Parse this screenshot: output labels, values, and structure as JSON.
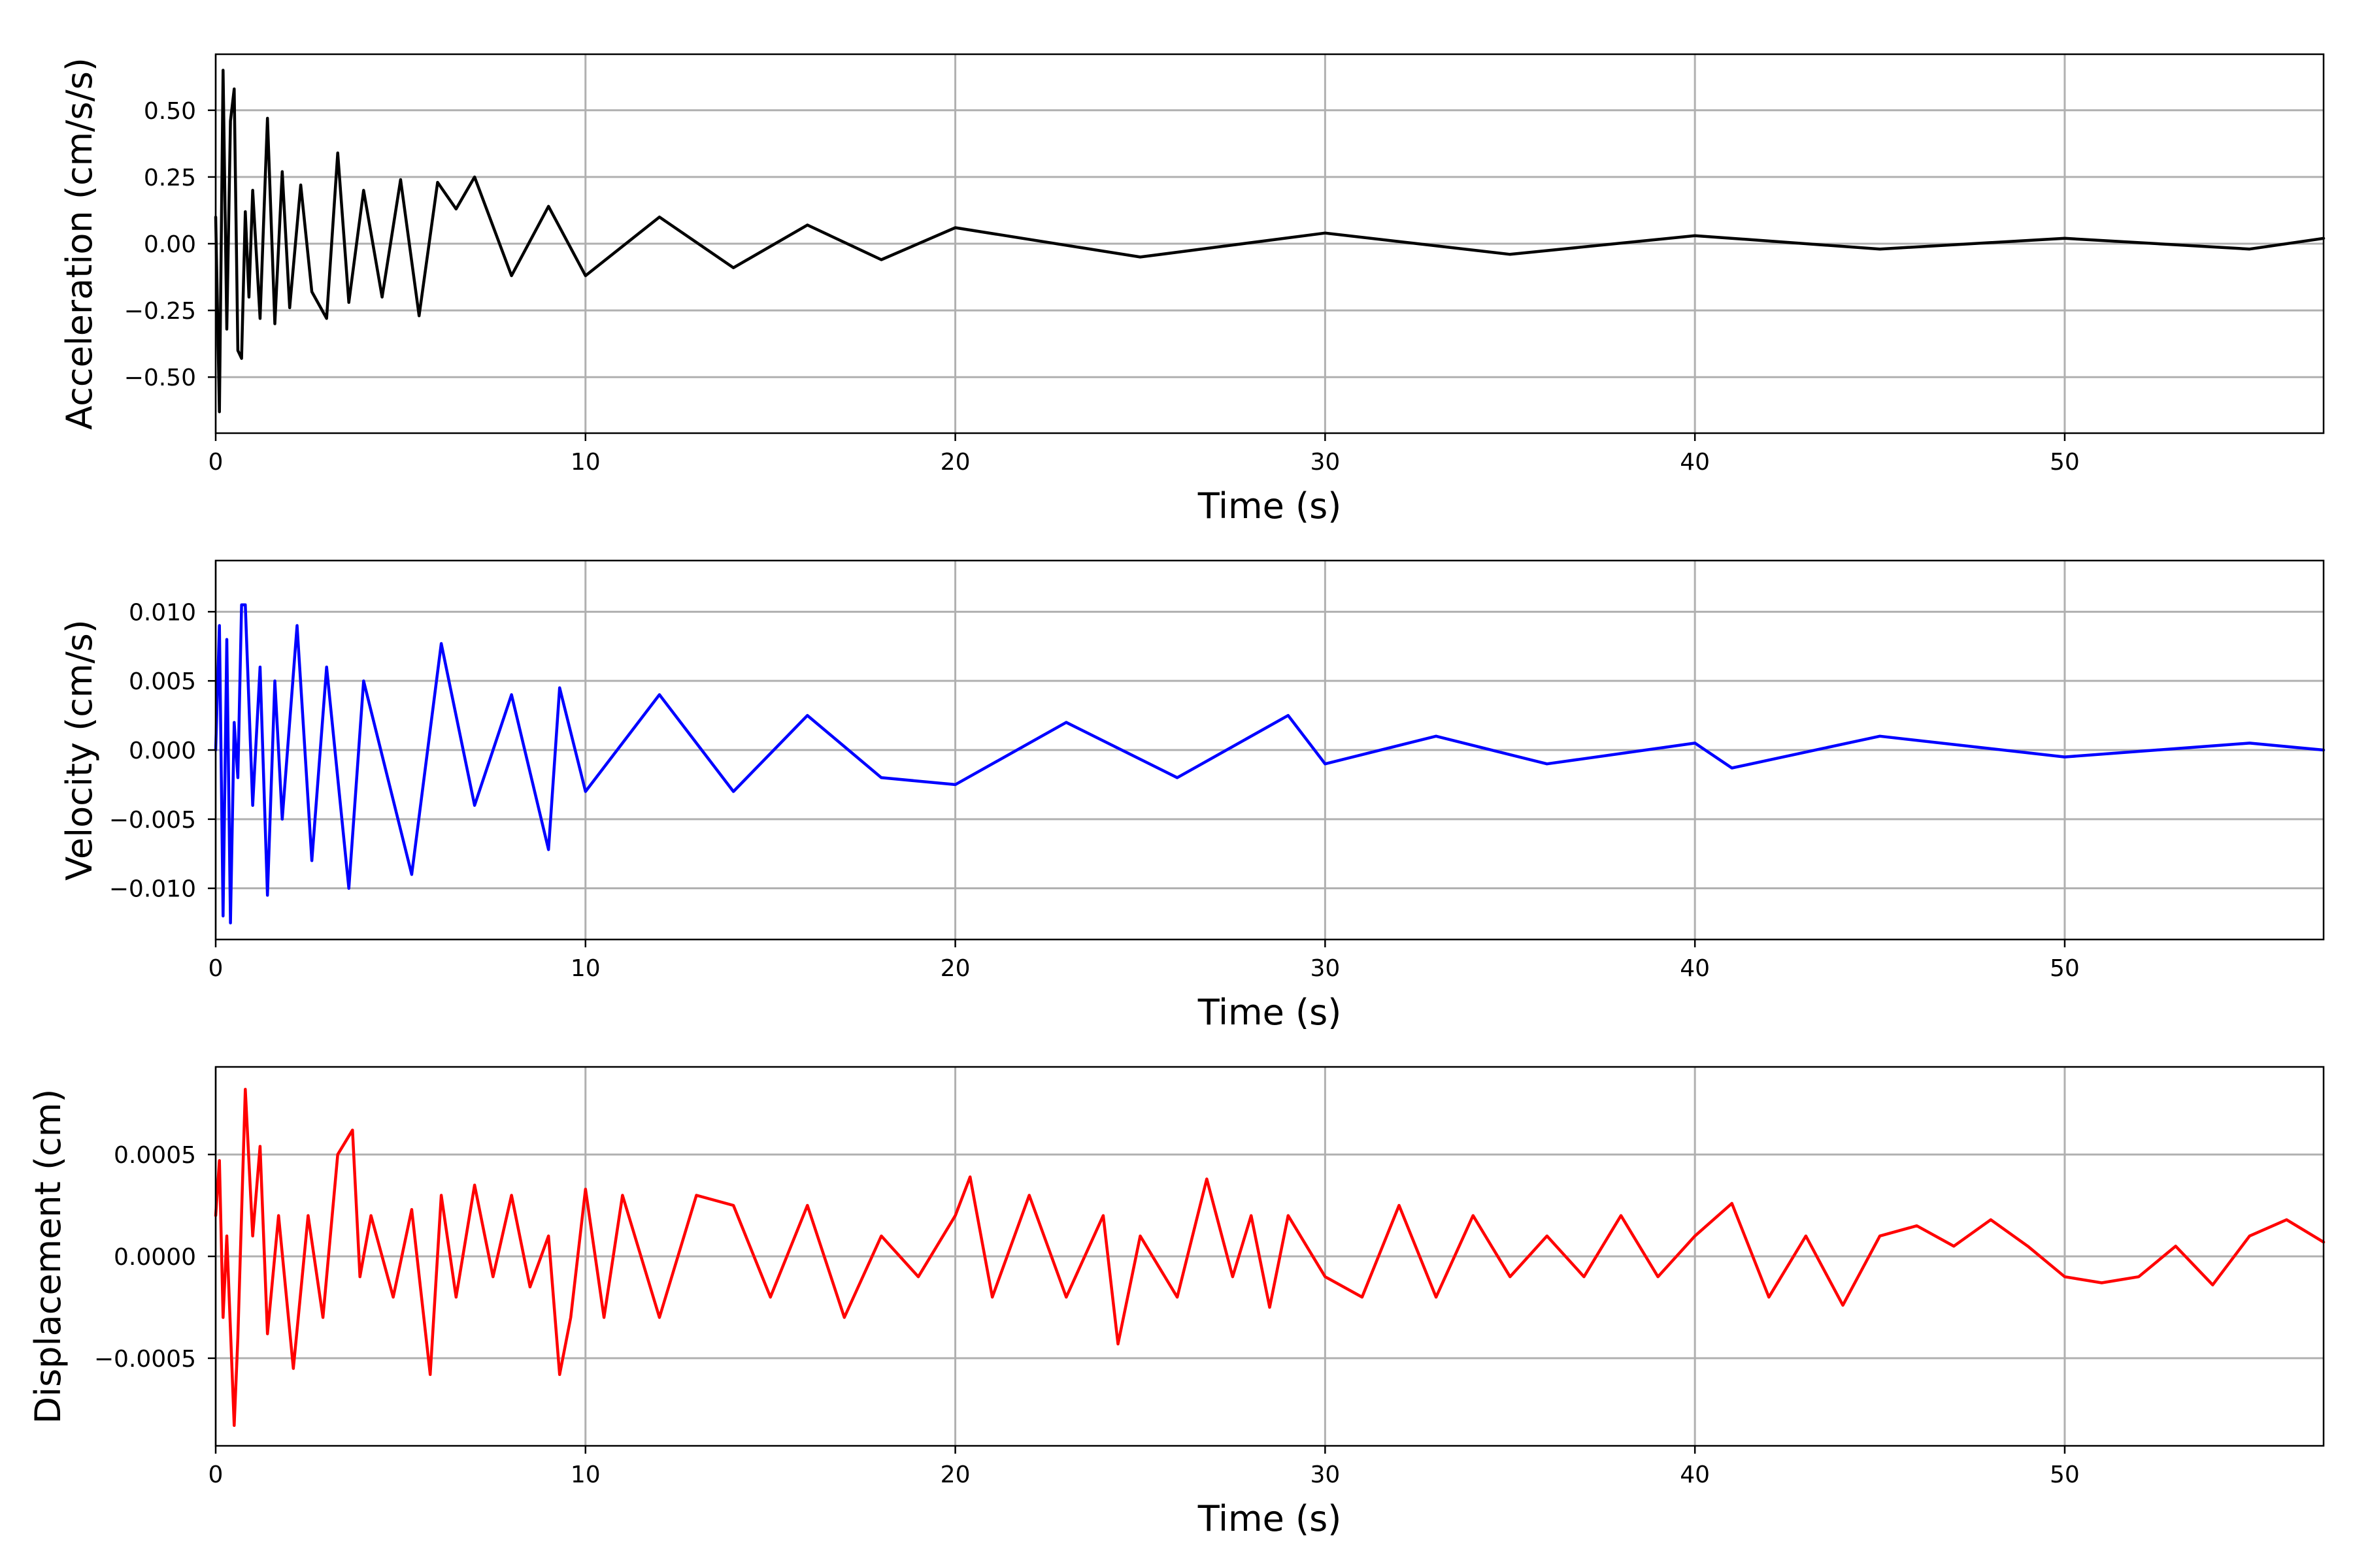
{
  "chart_data": [
    {
      "type": "line",
      "xlabel": "Time (s)",
      "ylabel": "Acceleration (cm/s/s)",
      "xlim": [
        0,
        57
      ],
      "ylim": [
        -0.71,
        0.71
      ],
      "x_ticks": [
        0,
        10,
        20,
        30,
        40,
        50
      ],
      "x_tick_labels": [
        "0",
        "10",
        "20",
        "30",
        "40",
        "50"
      ],
      "y_ticks": [
        -0.5,
        -0.25,
        0,
        0.25,
        0.5
      ],
      "y_tick_labels": [
        "−0.50",
        "−0.25",
        "0.00",
        "0.25",
        "0.50"
      ],
      "grid": true,
      "legend": "none",
      "series": [
        {
          "color": "#000000",
          "x": [
            0,
            0.1,
            0.2,
            0.3,
            0.4,
            0.5,
            0.6,
            0.7,
            0.8,
            0.9,
            1,
            1.2,
            1.4,
            1.6,
            1.8,
            2,
            2.3,
            2.6,
            3,
            3.3,
            3.6,
            4,
            4.5,
            5,
            5.5,
            6,
            6.5,
            7,
            8,
            9,
            10,
            12,
            14,
            16,
            18,
            20,
            25,
            30,
            35,
            40,
            45,
            50,
            55,
            57
          ],
          "y": [
            0.1,
            -0.63,
            0.65,
            -0.32,
            0.46,
            0.58,
            -0.4,
            -0.43,
            0.12,
            -0.2,
            0.2,
            -0.28,
            0.47,
            -0.3,
            0.27,
            -0.24,
            0.22,
            -0.18,
            -0.28,
            0.34,
            -0.22,
            0.2,
            -0.2,
            0.24,
            -0.27,
            0.23,
            0.13,
            0.25,
            -0.12,
            0.14,
            -0.12,
            0.1,
            -0.09,
            0.07,
            -0.06,
            0.06,
            -0.05,
            0.04,
            -0.04,
            0.03,
            -0.02,
            0.02,
            -0.02,
            0.02
          ]
        }
      ]
    },
    {
      "type": "line",
      "xlabel": "Time (s)",
      "ylabel": "Velocity (cm/s)",
      "xlim": [
        0,
        57
      ],
      "ylim": [
        -0.0137,
        0.0137
      ],
      "x_ticks": [
        0,
        10,
        20,
        30,
        40,
        50
      ],
      "x_tick_labels": [
        "0",
        "10",
        "20",
        "30",
        "40",
        "50"
      ],
      "y_ticks": [
        -0.01,
        -0.005,
        0,
        0.005,
        0.01
      ],
      "y_tick_labels": [
        "−0.010",
        "−0.005",
        "0.000",
        "0.005",
        "0.010"
      ],
      "grid": true,
      "legend": "none",
      "series": [
        {
          "color": "#0000ff",
          "x": [
            0,
            0.1,
            0.2,
            0.3,
            0.4,
            0.5,
            0.6,
            0.7,
            0.8,
            1,
            1.2,
            1.4,
            1.6,
            1.8,
            2.2,
            2.6,
            3,
            3.6,
            4,
            5.3,
            6.1,
            7,
            8,
            9,
            9.3,
            10,
            12,
            14,
            16,
            18,
            20,
            23,
            26,
            29,
            30,
            33,
            36,
            40,
            41,
            45,
            50,
            55,
            57
          ],
          "y": [
            0,
            0.009,
            -0.012,
            0.008,
            -0.0125,
            0.002,
            -0.002,
            0.0105,
            0.0105,
            -0.004,
            0.006,
            -0.0105,
            0.005,
            -0.005,
            0.009,
            -0.008,
            0.006,
            -0.01,
            0.005,
            -0.009,
            0.0077,
            -0.004,
            0.004,
            -0.0072,
            0.0045,
            -0.003,
            0.004,
            -0.003,
            0.0025,
            -0.002,
            -0.0025,
            0.002,
            -0.002,
            0.0025,
            -0.001,
            0.001,
            -0.001,
            0.0005,
            -0.0013,
            0.001,
            -0.0005,
            0.0005,
            0
          ]
        }
      ]
    },
    {
      "type": "line",
      "xlabel": "Time (s)",
      "ylabel": "Displacement (cm)",
      "xlim": [
        0,
        57
      ],
      "ylim": [
        -0.00093,
        0.00093
      ],
      "x_ticks": [
        0,
        10,
        20,
        30,
        40,
        50
      ],
      "x_tick_labels": [
        "0",
        "10",
        "20",
        "30",
        "40",
        "50"
      ],
      "y_ticks": [
        -0.0005,
        0,
        0.0005
      ],
      "y_tick_labels": [
        "−0.0005",
        "0.0000",
        "0.0005"
      ],
      "grid": true,
      "legend": "none",
      "series": [
        {
          "color": "#ff0000",
          "x": [
            0,
            0.1,
            0.2,
            0.3,
            0.5,
            0.6,
            0.8,
            1,
            1.2,
            1.4,
            1.7,
            2.1,
            2.5,
            2.9,
            3.3,
            3.7,
            3.9,
            4.2,
            4.8,
            5.3,
            5.8,
            6.1,
            6.5,
            7,
            7.5,
            8,
            8.5,
            9,
            9.3,
            9.6,
            10,
            10.5,
            11,
            12,
            13,
            14,
            15,
            16,
            17,
            18,
            19,
            20,
            20.4,
            21,
            22,
            23,
            24,
            24.4,
            25,
            26,
            26.8,
            27.5,
            28,
            28.5,
            29,
            30,
            31,
            32,
            33,
            34,
            35,
            36,
            37,
            38,
            39,
            40,
            41,
            42,
            43,
            44,
            45,
            46,
            47,
            48,
            49,
            50,
            51,
            52,
            53,
            54,
            55,
            56,
            57
          ],
          "y": [
            0.0002,
            0.00047,
            -0.0003,
            0.0001,
            -0.00083,
            -0.0004,
            0.00082,
            0.0001,
            0.00054,
            -0.00038,
            0.0002,
            -0.00055,
            0.0002,
            -0.0003,
            0.0005,
            0.00062,
            -0.0001,
            0.0002,
            -0.0002,
            0.00023,
            -0.00058,
            0.0003,
            -0.0002,
            0.00035,
            -0.0001,
            0.0003,
            -0.00015,
            0.0001,
            -0.00058,
            -0.0003,
            0.00033,
            -0.0003,
            0.0003,
            -0.0003,
            0.0003,
            0.00025,
            -0.0002,
            0.00025,
            -0.0003,
            0.0001,
            -0.0001,
            0.0002,
            0.00039,
            -0.0002,
            0.0003,
            -0.0002,
            0.0002,
            -0.00043,
            0.0001,
            -0.0002,
            0.00038,
            -0.0001,
            0.0002,
            -0.00025,
            0.0002,
            -0.0001,
            -0.0002,
            0.00025,
            -0.0002,
            0.0002,
            -0.0001,
            0.0001,
            -0.0001,
            0.0002,
            -0.0001,
            0.0001,
            0.00026,
            -0.0002,
            0.0001,
            -0.00024,
            0.0001,
            0.00015,
            5e-05,
            0.00018,
            5e-05,
            -0.0001,
            -0.00013,
            -0.0001,
            5e-05,
            -0.00014,
            0.0001,
            0.00018,
            7e-05
          ]
        }
      ]
    }
  ]
}
